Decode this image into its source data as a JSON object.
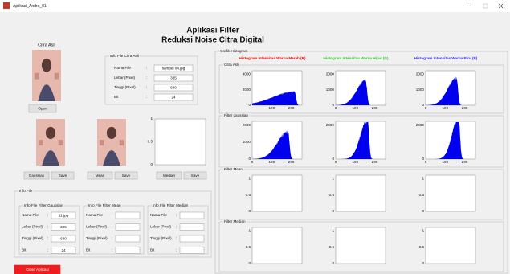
{
  "window": {
    "title": "Aplikasi_Andre_01"
  },
  "header": {
    "title": "Aplikasi Filter",
    "subtitle": "Reduksi Noise Citra Digital"
  },
  "original": {
    "label": "Citra Asli",
    "open_button": "Open"
  },
  "separator": ":",
  "info_original": {
    "title": "Info File Citra Asli",
    "rows": [
      {
        "label": "Nama File",
        "value": "sampel 04.jpg"
      },
      {
        "label": "Lebar (Pixel)",
        "value": "385"
      },
      {
        "label": "Tinggi (Pixel)",
        "value": "640"
      },
      {
        "label": "Bit",
        "value": "24"
      }
    ]
  },
  "filters": [
    {
      "button": "Gaussian",
      "save": "Save"
    },
    {
      "button": "Mean",
      "save": "Save"
    },
    {
      "button": "Median",
      "save": "Save"
    }
  ],
  "preview_axis": {
    "yticks": [
      "0",
      "0.5",
      "1"
    ]
  },
  "info_file": {
    "title": "Info File",
    "panels": [
      {
        "title": "Info File Filter Gaussian",
        "rows": [
          {
            "label": "Nama File",
            "value": "11.jpg"
          },
          {
            "label": "Lebar (Pixel)",
            "value": "385"
          },
          {
            "label": "Tinggi (Pixel)",
            "value": "640"
          },
          {
            "label": "Bit",
            "value": "24"
          }
        ]
      },
      {
        "title": "Info File Filter Mean",
        "rows": [
          {
            "label": "Nama File"
          },
          {
            "label": "Lebar (Pixel)"
          },
          {
            "label": "Tinggi (Pixel)"
          },
          {
            "label": "Bit"
          }
        ]
      },
      {
        "title": "Info File Filter Median",
        "rows": [
          {
            "label": "Nama File"
          },
          {
            "label": "Lebar (Pixel)"
          },
          {
            "label": "Tinggi (Pixel)"
          },
          {
            "label": "Bit"
          }
        ]
      }
    ]
  },
  "close_button": "Close Aplikasi",
  "histogram": {
    "title": "Grafik Histogram",
    "columns": [
      {
        "title": "Histogram Intensitas Warna Merah (R)",
        "color": "#ff0000"
      },
      {
        "title": "Histogram Intensitas Warna Hijau (G)",
        "color": "#33cc33"
      },
      {
        "title": "Histogram Intensitas Warna Biru (B)",
        "color": "#3333ff"
      }
    ],
    "rows": [
      {
        "title": "Citra Asli",
        "axes": [
          {
            "yticks": [
              "0",
              "2000",
              "4000"
            ],
            "xticks": [
              "100",
              "200"
            ]
          },
          {
            "yticks": [
              "0",
              "1000",
              "2000"
            ],
            "xticks": [
              "0",
              "100",
              "200"
            ]
          },
          {
            "yticks": [
              "0",
              "1000",
              "2000"
            ],
            "xticks": [
              "0",
              "100",
              "200"
            ]
          }
        ]
      },
      {
        "title": "Filter gaussian",
        "axes": [
          {
            "yticks": [
              "0",
              "1000",
              "2000"
            ],
            "xticks": [
              "0",
              "100",
              "200"
            ]
          },
          {
            "yticks": [
              "0",
              "2000"
            ],
            "xticks": [
              "0",
              "100",
              "200"
            ]
          },
          {
            "yticks": [
              "0",
              "2000"
            ],
            "xticks": [
              "0",
              "100",
              "200"
            ]
          }
        ]
      },
      {
        "title": "Filter Mean",
        "axes": [
          {
            "yticks": [
              "0",
              "0.5",
              "1"
            ]
          },
          {
            "yticks": [
              "0",
              "0.5",
              "1"
            ]
          },
          {
            "yticks": [
              "0",
              "0.5",
              "1"
            ]
          }
        ]
      },
      {
        "title": "Filter Median",
        "axes": [
          {
            "yticks": [
              "0",
              "0.5",
              "1"
            ]
          },
          {
            "yticks": [
              "0",
              "0.5",
              "1"
            ]
          },
          {
            "yticks": [
              "0",
              "0.5",
              "1"
            ]
          }
        ]
      }
    ]
  }
}
